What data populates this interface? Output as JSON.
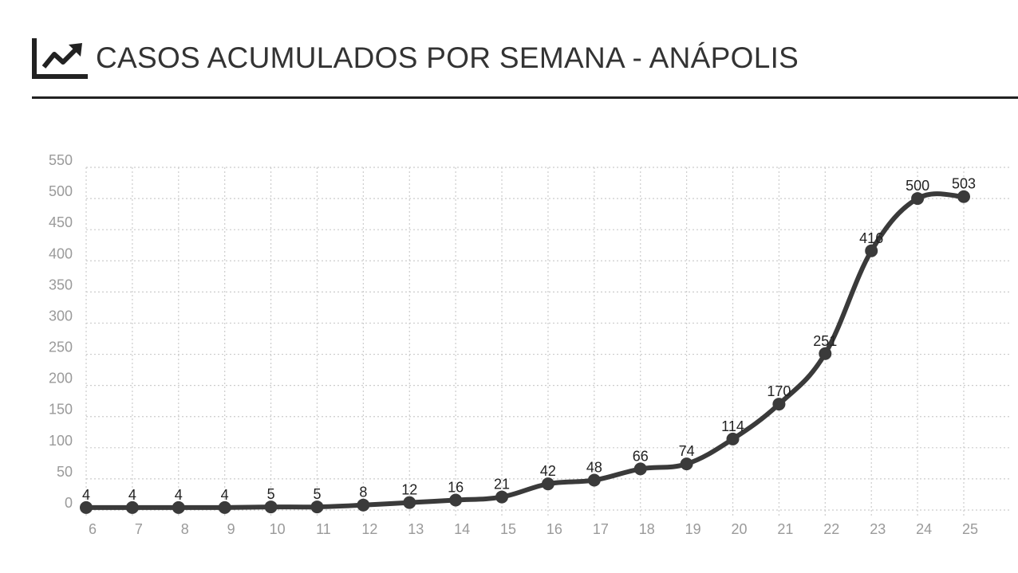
{
  "header": {
    "title": "CASOS ACUMULADOS POR SEMANA - ANÁPOLIS",
    "icon": "trending-up-chart-icon"
  },
  "colors": {
    "line": "#3a3a3a",
    "grid": "#cccccc",
    "tick": "#9a9a9a",
    "rule": "#222222"
  },
  "chart_data": {
    "type": "line",
    "title": "CASOS ACUMULADOS POR SEMANA - ANÁPOLIS",
    "xlabel": "",
    "ylabel": "",
    "x": [
      6,
      7,
      8,
      9,
      10,
      11,
      12,
      13,
      14,
      15,
      16,
      17,
      18,
      19,
      20,
      21,
      22,
      23,
      24,
      25
    ],
    "series": [
      {
        "values": [
          4,
          4,
          4,
          4,
          5,
          5,
          8,
          12,
          16,
          21,
          42,
          48,
          66,
          74,
          114,
          170,
          251,
          416,
          500,
          503
        ],
        "labels": [
          "4",
          "4",
          "4",
          "4",
          "5",
          "5",
          "8",
          "12",
          "16",
          "21",
          "42",
          "48",
          "66",
          "74",
          "114",
          "170",
          "251",
          "416",
          "500",
          "503"
        ]
      }
    ],
    "ylim": [
      0,
      550
    ],
    "yticks": [
      "0",
      "50",
      "100",
      "150",
      "200",
      "250",
      "300",
      "350",
      "400",
      "450",
      "500",
      "550"
    ],
    "xticks": [
      "6",
      "7",
      "8",
      "9",
      "10",
      "11",
      "12",
      "13",
      "14",
      "15",
      "16",
      "17",
      "18",
      "19",
      "20",
      "21",
      "22",
      "23",
      "24",
      "25"
    ],
    "grid": true,
    "legend": "none"
  }
}
